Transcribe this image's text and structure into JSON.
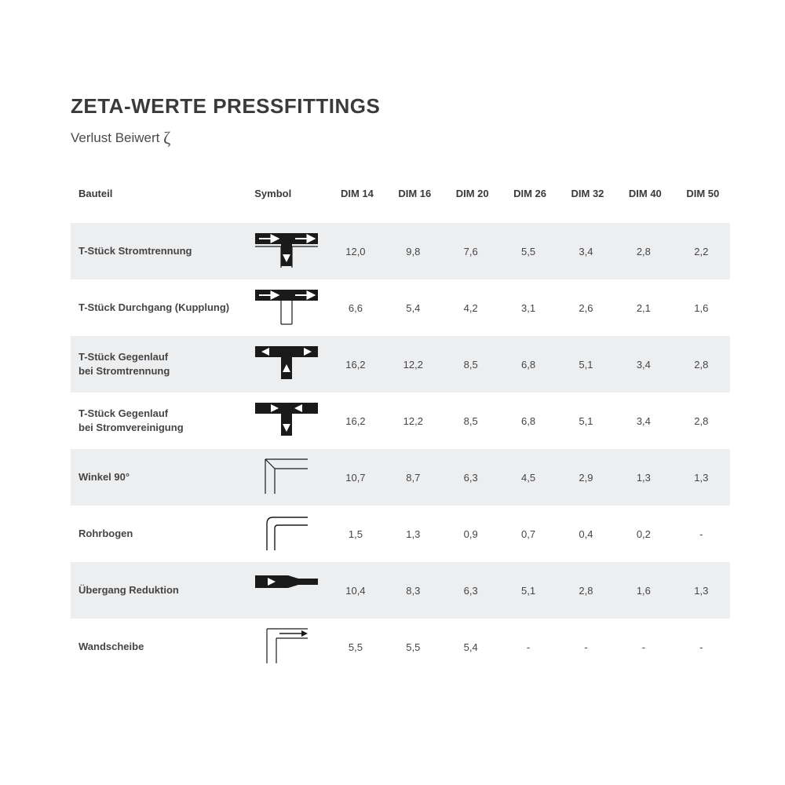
{
  "title": "ZETA-WERTE PRESSFITTINGS",
  "subtitle_prefix": "Verlust Beiwert ",
  "zeta_symbol": "ζ",
  "colors": {
    "text": "#3a3a3a",
    "stripe": "#edeef0",
    "background": "#ffffff",
    "symbol_stroke": "#1a1a1a"
  },
  "table": {
    "header_component": "Bauteil",
    "header_symbol": "Symbol",
    "dim_columns": [
      "DIM 14",
      "DIM 16",
      "DIM 20",
      "DIM 26",
      "DIM 32",
      "DIM 40",
      "DIM 50"
    ],
    "rows": [
      {
        "label": "T-Stück Stromtrennung",
        "symbol": "t-split-down",
        "values": [
          "12,0",
          "9,8",
          "7,6",
          "5,5",
          "3,4",
          "2,8",
          "2,2"
        ]
      },
      {
        "label": "T-Stück Durchgang (Kupplung)",
        "symbol": "t-through",
        "values": [
          "6,6",
          "5,4",
          "4,2",
          "3,1",
          "2,6",
          "2,1",
          "1,6"
        ]
      },
      {
        "label": "T-Stück Gegenlauf\nbei Stromtrennung",
        "symbol": "t-counter-split",
        "values": [
          "16,2",
          "12,2",
          "8,5",
          "6,8",
          "5,1",
          "3,4",
          "2,8"
        ]
      },
      {
        "label": "T-Stück Gegenlauf\nbei Stromvereinigung",
        "symbol": "t-counter-merge",
        "values": [
          "16,2",
          "12,2",
          "8,5",
          "6,8",
          "5,1",
          "3,4",
          "2,8"
        ]
      },
      {
        "label": "Winkel 90°",
        "symbol": "elbow-90",
        "values": [
          "10,7",
          "8,7",
          "6,3",
          "4,5",
          "2,9",
          "1,3",
          "1,3"
        ]
      },
      {
        "label": "Rohrbogen",
        "symbol": "bend",
        "values": [
          "1,5",
          "1,3",
          "0,9",
          "0,7",
          "0,4",
          "0,2",
          "-"
        ]
      },
      {
        "label": "Übergang Reduktion",
        "symbol": "reducer",
        "values": [
          "10,4",
          "8,3",
          "6,3",
          "5,1",
          "2,8",
          "1,6",
          "1,3"
        ]
      },
      {
        "label": "Wandscheibe",
        "symbol": "wall-plate",
        "values": [
          "5,5",
          "5,5",
          "5,4",
          "-",
          "-",
          "-",
          "-"
        ]
      }
    ]
  }
}
